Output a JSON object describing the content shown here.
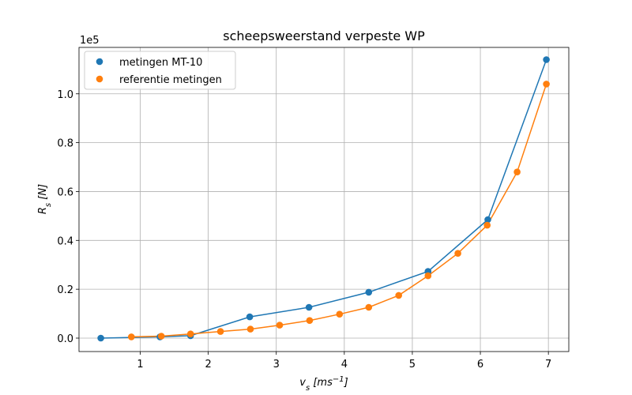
{
  "chart_data": {
    "type": "scatter",
    "title": "scheepsweerstand verpeste WP",
    "xlabel": "v_s [ms^-1]",
    "ylabel": "R_s [N]",
    "y_offset_text": "1e5",
    "xlim": [
      0.1,
      7.3
    ],
    "ylim": [
      -0.055,
      1.19
    ],
    "x_ticks": [
      1,
      2,
      3,
      4,
      5,
      6,
      7
    ],
    "y_ticks": [
      0.0,
      0.2,
      0.4,
      0.6,
      0.8,
      1.0
    ],
    "grid": true,
    "legend_position": "top-left",
    "series": [
      {
        "name": "metingen MT-10",
        "color": "#1f77b4",
        "x": [
          0.42,
          1.29,
          1.74,
          2.61,
          3.48,
          4.36,
          5.23,
          6.11,
          6.97
        ],
        "y": [
          0.0,
          0.005,
          0.01,
          0.087,
          0.126,
          0.188,
          0.273,
          0.485,
          1.14
        ]
      },
      {
        "name": "referentie metingen",
        "color": "#ff7f0e",
        "x": [
          0.87,
          1.31,
          1.74,
          2.18,
          2.62,
          3.05,
          3.49,
          3.93,
          4.36,
          4.8,
          5.23,
          5.67,
          6.1,
          6.54,
          6.97
        ],
        "y": [
          0.005,
          0.008,
          0.017,
          0.027,
          0.037,
          0.053,
          0.072,
          0.098,
          0.126,
          0.175,
          0.255,
          0.347,
          0.462,
          0.68,
          1.04
        ]
      }
    ]
  }
}
